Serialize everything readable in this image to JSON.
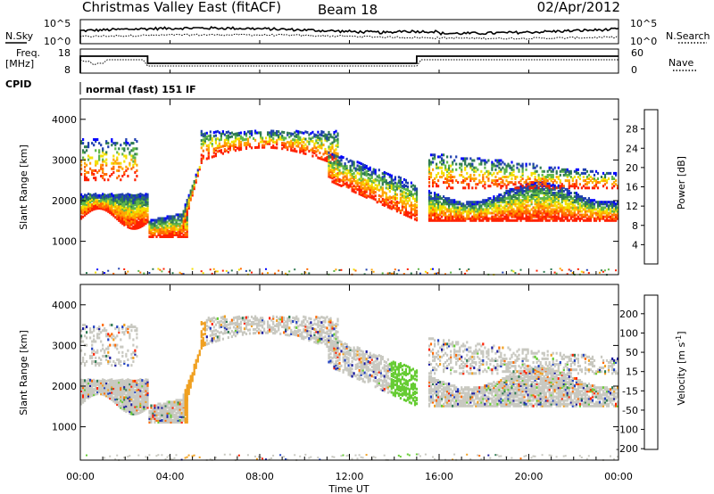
{
  "header": {
    "title": "Christmas Valley East (fitACF)",
    "beam": "Beam 18",
    "date": "02/Apr/2012"
  },
  "noise_panel": {
    "left_label": "N.Sky",
    "right_label": "N.Search",
    "ticks_left": [
      "10^5",
      "10^0"
    ],
    "ticks_right": [
      "10^5",
      "10^0"
    ]
  },
  "freq_panel": {
    "left_label_1": "Freq.",
    "left_label_2": "[MHz]",
    "right_label": "Nave",
    "ticks_left": [
      "18",
      "8"
    ],
    "ticks_right": [
      "60",
      "0"
    ],
    "steps": [
      {
        "t": 0,
        "level": "high"
      },
      {
        "t": 3,
        "level": "low"
      },
      {
        "t": 15,
        "level": "high"
      },
      {
        "t": 24,
        "level": "high"
      }
    ]
  },
  "cpid": {
    "label": "CPID",
    "value": "normal (fast) 151 IF"
  },
  "chart_data": [
    {
      "type": "heatmap",
      "parameter": "Power",
      "ylabel": "Slant Range [km]",
      "colorbar_label": "Power [dB]",
      "y_ticks": [
        "1000",
        "2000",
        "3000",
        "4000"
      ],
      "ylim": [
        180,
        4500
      ],
      "colorbar_ticks": [
        "4",
        "8",
        "12",
        "16",
        "20",
        "24",
        "28"
      ],
      "colors": [
        "#0000ff",
        "#1f3fb0",
        "#2e7a52",
        "#5fb648",
        "#f2e000",
        "#ffa500",
        "#ff6a00",
        "#ff2000"
      ]
    },
    {
      "type": "heatmap",
      "parameter": "Velocity",
      "ylabel": "Slant Range [km]",
      "colorbar_label": "Velocity [m s^-1]",
      "y_ticks": [
        "1000",
        "2000",
        "3000",
        "4000"
      ],
      "ylim": [
        180,
        4500
      ],
      "colorbar_ticks": [
        "200",
        "100",
        "50",
        "15",
        "-15",
        "-50",
        "-100",
        "-200"
      ],
      "colors": [
        "#1a1aa0",
        "#2040c0",
        "#2e7a52",
        "#66cc33",
        "#c8c8c0",
        "#f0a020",
        "#ff6a00",
        "#ff2000"
      ]
    }
  ],
  "xaxis": {
    "label": "Time UT",
    "ticks": [
      "00:00",
      "04:00",
      "08:00",
      "12:00",
      "16:00",
      "20:00",
      "00:00"
    ]
  }
}
